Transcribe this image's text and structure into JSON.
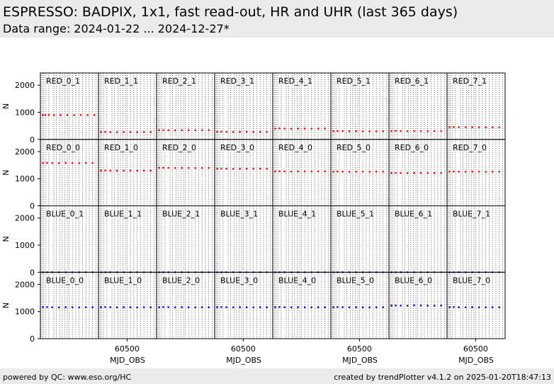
{
  "header": {
    "title": "ESPRESSO: BADPIX, 1x1, fast read-out, HR and UHR (last 365 days)",
    "subtitle": "Data range: 2024-01-22 ... 2024-12-27*"
  },
  "footer": {
    "left": "powered by QC: www.eso.org/HC",
    "right": "created by trendPlotter v4.1.2 on 2025-01-20T18:47:13"
  },
  "colors": {
    "red_series": "#ff0000",
    "blue_series": "#0000cc",
    "header_bg": "#ebebeb"
  },
  "chart_data": {
    "type": "scatter",
    "xlabel": "MJD_OBS",
    "ylabel": "N",
    "xlim": [
      60330,
      60675
    ],
    "ylim": [
      0,
      2450
    ],
    "yticks": [
      0,
      1000,
      2000
    ],
    "xticks": [
      60500
    ],
    "x": [
      60332,
      60340,
      60350,
      60360,
      60380,
      60410,
      60425,
      60445,
      60460,
      60475,
      60490,
      60500,
      60520,
      60540,
      60560,
      60580,
      60600,
      60620,
      60640,
      60660
    ],
    "rows": [
      [
        "RED_0_1",
        "RED_1_1",
        "RED_2_1",
        "RED_3_1",
        "RED_4_1",
        "RED_5_1",
        "RED_6_1",
        "RED_7_1"
      ],
      [
        "RED_0_0",
        "RED_1_0",
        "RED_2_0",
        "RED_3_0",
        "RED_4_0",
        "RED_5_0",
        "RED_6_0",
        "RED_7_0"
      ],
      [
        "BLUE_0_1",
        "BLUE_1_1",
        "BLUE_2_1",
        "BLUE_3_1",
        "BLUE_4_1",
        "BLUE_5_1",
        "BLUE_6_1",
        "BLUE_7_1"
      ],
      [
        "BLUE_0_0",
        "BLUE_1_0",
        "BLUE_2_0",
        "BLUE_3_0",
        "BLUE_4_0",
        "BLUE_5_0",
        "BLUE_6_0",
        "BLUE_7_0"
      ]
    ],
    "panels": [
      {
        "label": "RED_0_1",
        "color": "red",
        "x": [
          60345,
          60360,
          60380,
          60410,
          60450,
          60490,
          60530,
          60570,
          60610,
          60650
        ],
        "y": [
          900,
          905,
          900,
          895,
          900,
          900,
          895,
          900,
          900,
          900
        ]
      },
      {
        "label": "RED_1_1",
        "color": "red",
        "x": [
          60345,
          60370,
          60400,
          60440,
          60480,
          60520,
          60560,
          60600,
          60640
        ],
        "y": [
          270,
          275,
          270,
          265,
          270,
          270,
          265,
          270,
          270
        ]
      },
      {
        "label": "RED_2_1",
        "color": "red",
        "x": [
          60345,
          60370,
          60400,
          60440,
          60480,
          60520,
          60560,
          60600,
          60640
        ],
        "y": [
          340,
          345,
          340,
          335,
          340,
          340,
          335,
          340,
          340
        ]
      },
      {
        "label": "RED_3_1",
        "color": "red",
        "x": [
          60345,
          60370,
          60400,
          60440,
          60480,
          60520,
          60560,
          60600,
          60640
        ],
        "y": [
          280,
          285,
          280,
          275,
          280,
          280,
          275,
          280,
          280
        ]
      },
      {
        "label": "RED_4_1",
        "color": "red",
        "x": [
          60345,
          60370,
          60400,
          60440,
          60480,
          60520,
          60560,
          60600,
          60640
        ],
        "y": [
          400,
          405,
          400,
          395,
          400,
          400,
          395,
          400,
          400
        ]
      },
      {
        "label": "RED_5_1",
        "color": "red",
        "x": [
          60345,
          60370,
          60400,
          60440,
          60480,
          60520,
          60560,
          60600,
          60640
        ],
        "y": [
          305,
          310,
          305,
          300,
          305,
          305,
          300,
          305,
          305
        ]
      },
      {
        "label": "RED_6_1",
        "color": "red",
        "x": [
          60345,
          60370,
          60400,
          60440,
          60480,
          60520,
          60560,
          60600,
          60640
        ],
        "y": [
          310,
          315,
          310,
          305,
          310,
          310,
          305,
          310,
          310
        ]
      },
      {
        "label": "RED_7_1",
        "color": "red",
        "x": [
          60345,
          60370,
          60400,
          60440,
          60480,
          60520,
          60560,
          60600,
          60640
        ],
        "y": [
          450,
          455,
          450,
          445,
          450,
          450,
          445,
          450,
          450
        ]
      },
      {
        "label": "RED_0_0",
        "color": "red",
        "x": [
          60345,
          60370,
          60400,
          60440,
          60480,
          60520,
          60560,
          60600,
          60640
        ],
        "y": [
          1580,
          1585,
          1580,
          1575,
          1580,
          1580,
          1575,
          1580,
          1580
        ]
      },
      {
        "label": "RED_1_0",
        "color": "red",
        "x": [
          60345,
          60370,
          60400,
          60440,
          60480,
          60520,
          60560,
          60600,
          60640
        ],
        "y": [
          1300,
          1305,
          1300,
          1295,
          1300,
          1300,
          1295,
          1300,
          1300
        ]
      },
      {
        "label": "RED_2_0",
        "color": "red",
        "x": [
          60345,
          60370,
          60400,
          60440,
          60480,
          60520,
          60560,
          60600,
          60640
        ],
        "y": [
          1400,
          1405,
          1400,
          1395,
          1400,
          1400,
          1395,
          1400,
          1400
        ]
      },
      {
        "label": "RED_3_0",
        "color": "red",
        "x": [
          60345,
          60370,
          60400,
          60440,
          60480,
          60520,
          60560,
          60600,
          60640
        ],
        "y": [
          1370,
          1375,
          1370,
          1365,
          1370,
          1370,
          1365,
          1370,
          1370
        ]
      },
      {
        "label": "RED_4_0",
        "color": "red",
        "x": [
          60345,
          60370,
          60400,
          60440,
          60480,
          60520,
          60560,
          60600,
          60640
        ],
        "y": [
          1270,
          1275,
          1270,
          1265,
          1270,
          1270,
          1265,
          1270,
          1270
        ]
      },
      {
        "label": "RED_5_0",
        "color": "red",
        "x": [
          60345,
          60370,
          60400,
          60440,
          60480,
          60520,
          60560,
          60600,
          60640
        ],
        "y": [
          1260,
          1265,
          1260,
          1255,
          1260,
          1260,
          1255,
          1260,
          1260
        ]
      },
      {
        "label": "RED_6_0",
        "color": "red",
        "x": [
          60345,
          60370,
          60400,
          60440,
          60480,
          60520,
          60560,
          60600,
          60640
        ],
        "y": [
          1210,
          1215,
          1210,
          1205,
          1210,
          1210,
          1205,
          1210,
          1210
        ]
      },
      {
        "label": "RED_7_0",
        "color": "red",
        "x": [
          60345,
          60370,
          60400,
          60440,
          60480,
          60520,
          60560,
          60600,
          60640
        ],
        "y": [
          1260,
          1265,
          1260,
          1255,
          1260,
          1260,
          1255,
          1260,
          1260
        ]
      },
      {
        "label": "BLUE_0_1",
        "color": "blue",
        "x": [
          60345,
          60370,
          60400,
          60440,
          60480,
          60520,
          60560,
          60600,
          60640
        ],
        "y": [
          0,
          0,
          0,
          0,
          0,
          0,
          0,
          0,
          0
        ]
      },
      {
        "label": "BLUE_1_1",
        "color": "blue",
        "x": [
          60345,
          60370,
          60400,
          60440,
          60480,
          60520,
          60560,
          60600,
          60640
        ],
        "y": [
          0,
          0,
          0,
          0,
          0,
          0,
          0,
          0,
          0
        ]
      },
      {
        "label": "BLUE_2_1",
        "color": "blue",
        "x": [
          60345,
          60370,
          60400,
          60440,
          60480,
          60520,
          60560,
          60600,
          60640
        ],
        "y": [
          0,
          0,
          0,
          0,
          0,
          0,
          0,
          0,
          0
        ]
      },
      {
        "label": "BLUE_3_1",
        "color": "blue",
        "x": [
          60345,
          60370,
          60400,
          60440,
          60480,
          60520,
          60560,
          60600,
          60640
        ],
        "y": [
          0,
          0,
          0,
          0,
          0,
          0,
          0,
          0,
          0
        ]
      },
      {
        "label": "BLUE_4_1",
        "color": "blue",
        "x": [
          60345,
          60370,
          60400,
          60440,
          60480,
          60520,
          60560,
          60600,
          60640
        ],
        "y": [
          0,
          0,
          0,
          0,
          0,
          0,
          0,
          0,
          0
        ]
      },
      {
        "label": "BLUE_5_1",
        "color": "blue",
        "x": [
          60345,
          60370,
          60400,
          60440,
          60480,
          60520,
          60560,
          60600,
          60640
        ],
        "y": [
          0,
          0,
          0,
          0,
          0,
          0,
          0,
          0,
          0
        ]
      },
      {
        "label": "BLUE_6_1",
        "color": "blue",
        "x": [
          60345,
          60370,
          60400,
          60440,
          60480,
          60520,
          60560,
          60600,
          60640
        ],
        "y": [
          0,
          0,
          0,
          0,
          0,
          0,
          0,
          0,
          0
        ]
      },
      {
        "label": "BLUE_7_1",
        "color": "blue",
        "x": [
          60345,
          60370,
          60400,
          60440,
          60480,
          60520,
          60560,
          60600,
          60640
        ],
        "y": [
          0,
          0,
          0,
          0,
          0,
          0,
          0,
          0,
          0
        ]
      },
      {
        "label": "BLUE_0_0",
        "color": "blue",
        "x": [
          60345,
          60370,
          60400,
          60440,
          60480,
          60520,
          60560,
          60600,
          60640
        ],
        "y": [
          1160,
          1165,
          1160,
          1155,
          1160,
          1160,
          1155,
          1160,
          1160
        ]
      },
      {
        "label": "BLUE_1_0",
        "color": "blue",
        "x": [
          60345,
          60370,
          60400,
          60440,
          60480,
          60520,
          60560,
          60600,
          60640
        ],
        "y": [
          1160,
          1165,
          1160,
          1155,
          1160,
          1160,
          1155,
          1160,
          1160
        ]
      },
      {
        "label": "BLUE_2_0",
        "color": "blue",
        "x": [
          60345,
          60370,
          60400,
          60440,
          60480,
          60520,
          60560,
          60600,
          60640
        ],
        "y": [
          1160,
          1165,
          1160,
          1155,
          1160,
          1160,
          1155,
          1160,
          1160
        ]
      },
      {
        "label": "BLUE_3_0",
        "color": "blue",
        "x": [
          60345,
          60370,
          60400,
          60440,
          60480,
          60520,
          60560,
          60600,
          60640
        ],
        "y": [
          1160,
          1165,
          1160,
          1155,
          1160,
          1160,
          1155,
          1160,
          1160
        ]
      },
      {
        "label": "BLUE_4_0",
        "color": "blue",
        "x": [
          60345,
          60370,
          60400,
          60440,
          60480,
          60520,
          60560,
          60600,
          60640
        ],
        "y": [
          1160,
          1165,
          1160,
          1155,
          1160,
          1160,
          1155,
          1160,
          1160
        ]
      },
      {
        "label": "BLUE_5_0",
        "color": "blue",
        "x": [
          60345,
          60370,
          60400,
          60440,
          60480,
          60520,
          60560,
          60600,
          60640
        ],
        "y": [
          1160,
          1165,
          1160,
          1155,
          1160,
          1160,
          1155,
          1160,
          1160
        ]
      },
      {
        "label": "BLUE_6_0",
        "color": "blue",
        "x": [
          60345,
          60370,
          60400,
          60440,
          60480,
          60520,
          60560,
          60600,
          60640
        ],
        "y": [
          1220,
          1225,
          1220,
          1215,
          1230,
          1225,
          1220,
          1215,
          1220
        ]
      },
      {
        "label": "BLUE_7_0",
        "color": "blue",
        "x": [
          60345,
          60370,
          60400,
          60440,
          60480,
          60520,
          60560,
          60600,
          60640
        ],
        "y": [
          1160,
          1165,
          1160,
          1155,
          1160,
          1160,
          1155,
          1160,
          1160
        ]
      }
    ],
    "grid": true
  }
}
